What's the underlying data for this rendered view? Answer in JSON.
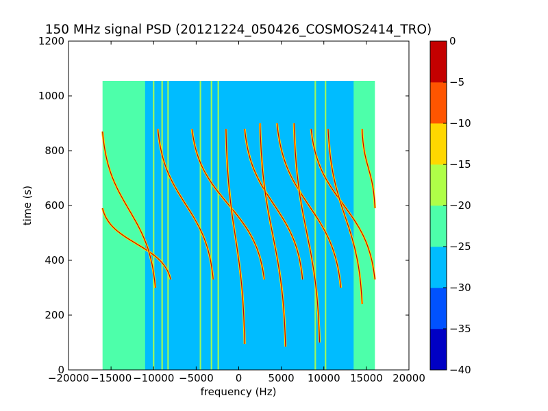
{
  "chart_data": {
    "type": "heatmap",
    "title": "150 MHz signal PSD (20121224_050426_COSMOS2414_TRO)",
    "xlabel": "frequency (Hz)",
    "ylabel": "time (s)",
    "xlim": [
      -20000,
      20000
    ],
    "ylim": [
      0,
      1200
    ],
    "xticks": [
      "−20000",
      "−15000",
      "−10000",
      "−5000",
      "0",
      "5000",
      "10000",
      "15000",
      "20000"
    ],
    "yticks": [
      "0",
      "200",
      "400",
      "600",
      "800",
      "1000",
      "1200"
    ],
    "data_extent": {
      "freq": [
        -16000,
        16000
      ],
      "time": [
        0,
        1055
      ]
    },
    "colorbar": {
      "levels": [
        -40,
        -35,
        -30,
        -25,
        -20,
        -15,
        -10,
        -5,
        0
      ],
      "tick_labels": [
        "−40",
        "−35",
        "−30",
        "−25",
        "−20",
        "−15",
        "−10",
        "−5",
        "0"
      ],
      "colors": [
        "#0000c4",
        "#0052ff",
        "#00bcff",
        "#4dffaa",
        "#afff48",
        "#ffd700",
        "#ff5500",
        "#c40000"
      ]
    },
    "background_level_outer": -22.5,
    "background_level_center": -27.5,
    "grid": false,
    "legend": "none",
    "vertical_lines_hz": [
      -10000,
      -9000,
      -8300,
      -4500,
      -3200,
      -2400,
      9000,
      10200
    ],
    "doppler_traces": [
      {
        "freq_top": -16000,
        "time_top": 590,
        "freq_bottom": -8000,
        "time_bottom": 330
      },
      {
        "freq_top": -16000,
        "time_top": 870,
        "freq_bottom": -9800,
        "time_bottom": 300
      },
      {
        "freq_top": -9500,
        "time_top": 880,
        "freq_bottom": -3000,
        "time_bottom": 330
      },
      {
        "freq_top": -5500,
        "time_top": 880,
        "freq_bottom": 3000,
        "time_bottom": 330
      },
      {
        "freq_top": -1500,
        "time_top": 880,
        "freq_bottom": 700,
        "time_bottom": 95
      },
      {
        "freq_top": 700,
        "time_top": 880,
        "freq_bottom": 7500,
        "time_bottom": 330
      },
      {
        "freq_top": 2500,
        "time_top": 900,
        "freq_bottom": 5500,
        "time_bottom": 85
      },
      {
        "freq_top": 4500,
        "time_top": 900,
        "freq_bottom": 12000,
        "time_bottom": 300
      },
      {
        "freq_top": 6500,
        "time_top": 900,
        "freq_bottom": 9500,
        "time_bottom": 100
      },
      {
        "freq_top": 8500,
        "time_top": 880,
        "freq_bottom": 16000,
        "time_bottom": 330
      },
      {
        "freq_top": 10500,
        "time_top": 880,
        "freq_bottom": 14500,
        "time_bottom": 240
      },
      {
        "freq_top": 14500,
        "time_top": 880,
        "freq_bottom": 16000,
        "time_bottom": 590
      }
    ]
  }
}
